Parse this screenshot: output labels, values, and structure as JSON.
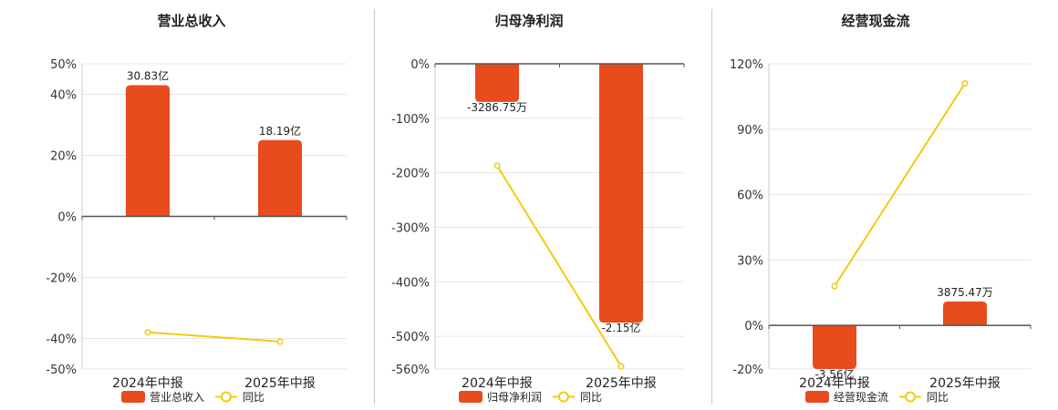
{
  "colors": {
    "bar": "#e84b1c",
    "line": "#f2cc0f",
    "grid": "#e6e6e6",
    "axis": "#555555"
  },
  "legend_line_label": "同比",
  "chart_data": [
    {
      "type": "bar",
      "title": "营业总收入",
      "categories": [
        "2024年中报",
        "2025年中报"
      ],
      "series": [
        {
          "name": "营业总收入",
          "kind": "bar",
          "axis": "yoy",
          "values": [
            43,
            25
          ],
          "labels": [
            "30.83亿",
            "18.19亿"
          ]
        },
        {
          "name": "同比",
          "kind": "line",
          "values": [
            -38,
            -41
          ]
        }
      ],
      "y_ticks": [
        "50%",
        "40%",
        "20%",
        "0%",
        "-20%",
        "-40%",
        "-50%"
      ],
      "y_tick_values": [
        50,
        40,
        20,
        0,
        -20,
        -40,
        -50
      ],
      "ylim": [
        -50,
        50
      ],
      "grid": true,
      "legend": "bottom"
    },
    {
      "type": "bar",
      "title": "归母净利润",
      "categories": [
        "2024年中报",
        "2025年中报"
      ],
      "series": [
        {
          "name": "归母净利润",
          "kind": "bar",
          "axis": "yoy",
          "values": [
            -70,
            -475
          ],
          "labels": [
            "-3286.75万",
            "-2.15亿"
          ]
        },
        {
          "name": "同比",
          "kind": "line",
          "values": [
            -187,
            -555
          ]
        }
      ],
      "y_ticks": [
        "0%",
        "-100%",
        "-200%",
        "-300%",
        "-400%",
        "-500%",
        "-560%"
      ],
      "y_tick_values": [
        0,
        -100,
        -200,
        -300,
        -400,
        -500,
        -560
      ],
      "ylim": [
        -560,
        0
      ],
      "grid": true,
      "legend": "bottom"
    },
    {
      "type": "bar",
      "title": "经营现金流",
      "categories": [
        "2024年中报",
        "2025年中报"
      ],
      "series": [
        {
          "name": "经营现金流",
          "kind": "bar",
          "axis": "yoy",
          "values": [
            -20,
            11
          ],
          "labels": [
            "-3.56亿",
            "3875.47万"
          ]
        },
        {
          "name": "同比",
          "kind": "line",
          "values": [
            18,
            111
          ]
        }
      ],
      "y_ticks": [
        "120%",
        "90%",
        "60%",
        "30%",
        "0%",
        "-20%"
      ],
      "y_tick_values": [
        120,
        90,
        60,
        30,
        0,
        -20
      ],
      "ylim": [
        -20,
        120
      ],
      "grid": true,
      "legend": "bottom"
    }
  ]
}
